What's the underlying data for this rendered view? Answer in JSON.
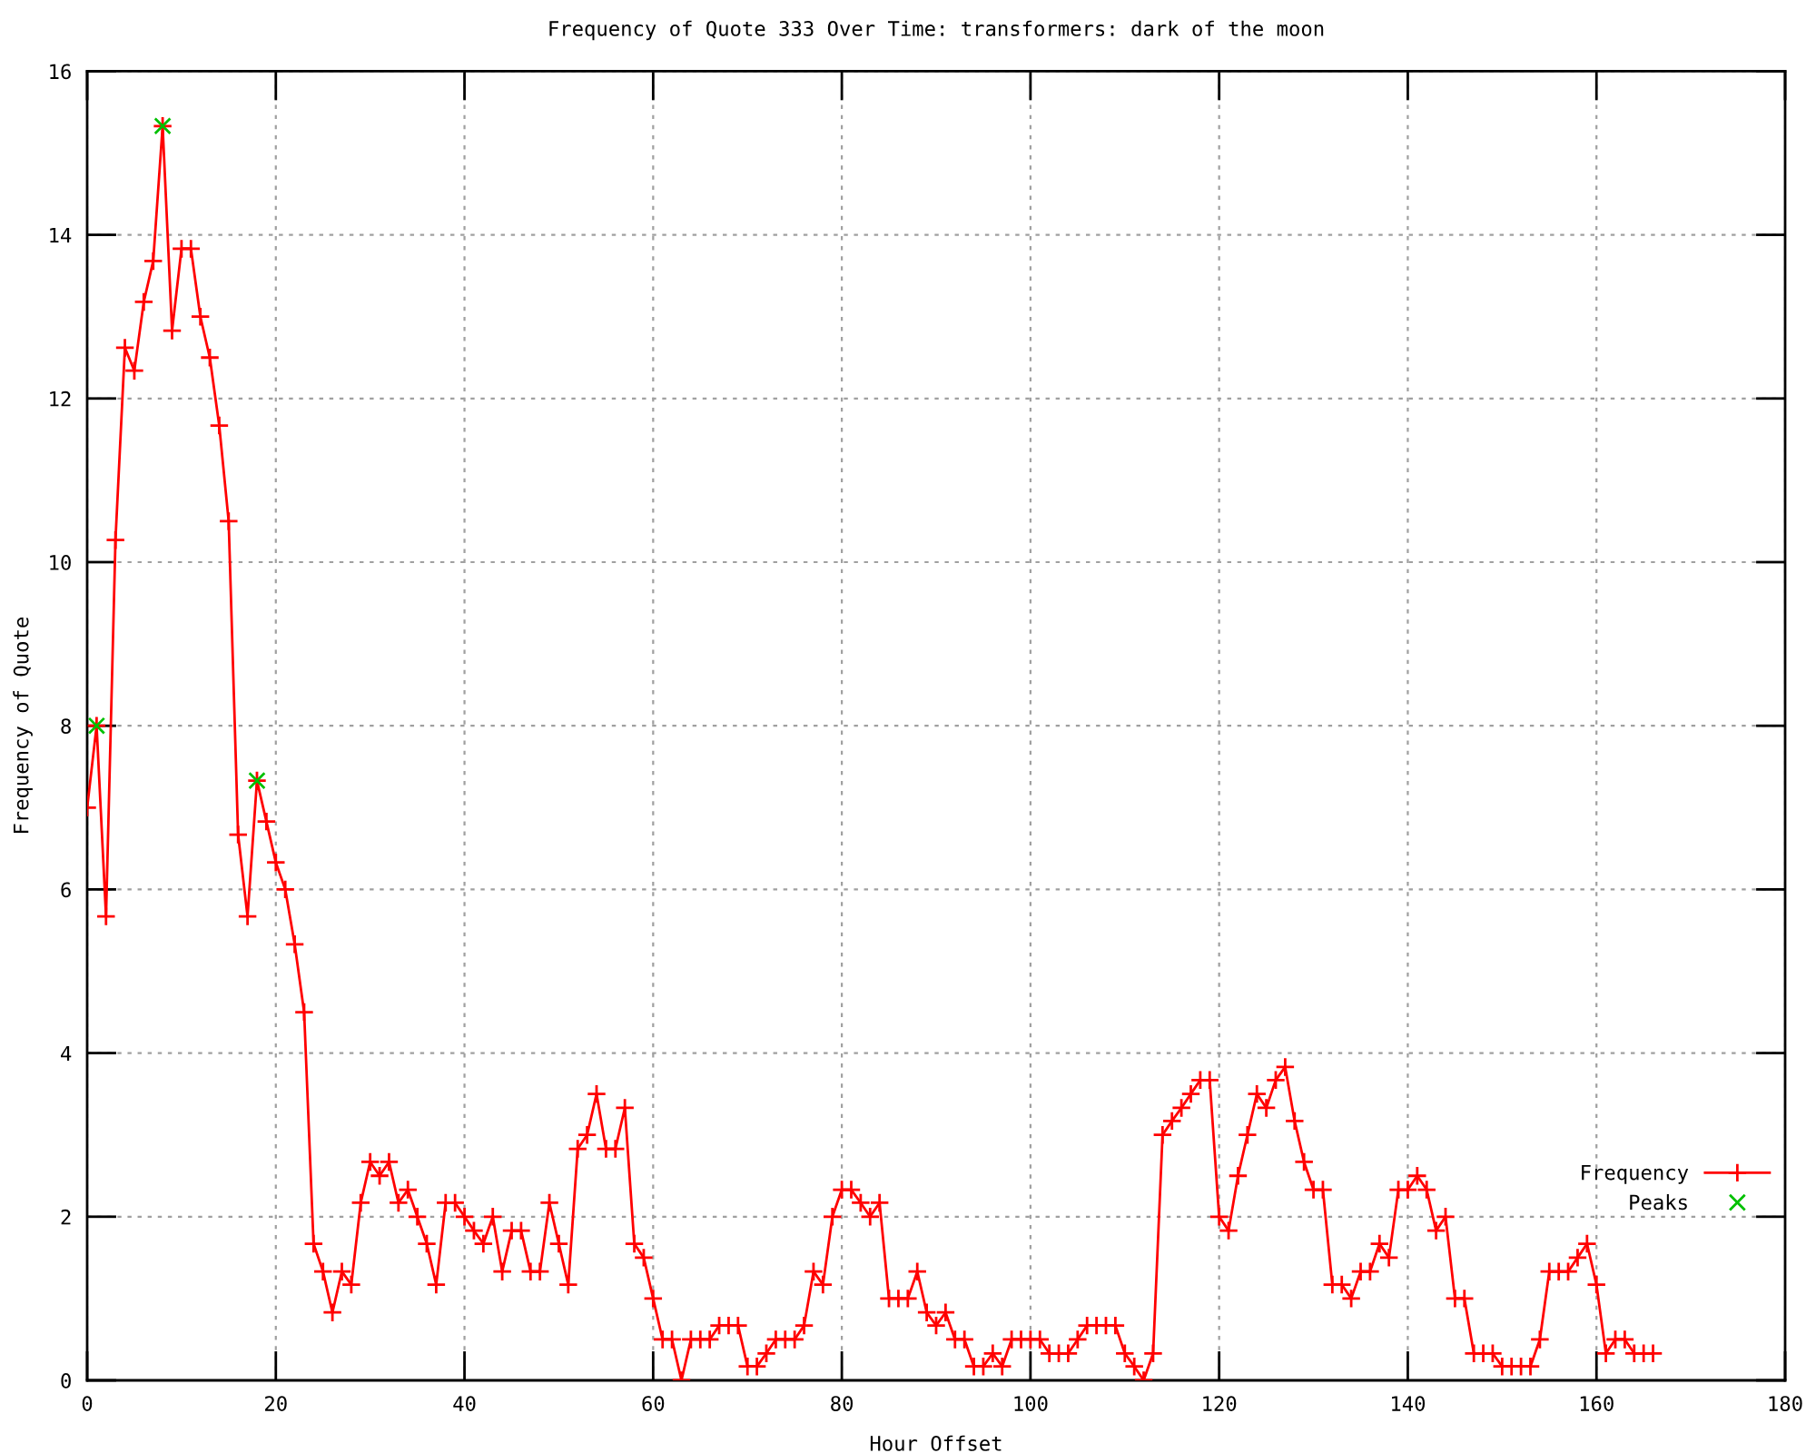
{
  "chart_data": {
    "type": "line",
    "title": "Frequency of Quote 333 Over Time: transformers: dark of the moon",
    "xlabel": "Hour Offset",
    "ylabel": "Frequency of Quote",
    "xlim": [
      0,
      180
    ],
    "ylim": [
      0,
      16
    ],
    "xticks": [
      0,
      20,
      40,
      60,
      80,
      100,
      120,
      140,
      160,
      180
    ],
    "yticks": [
      0,
      2,
      4,
      6,
      8,
      10,
      12,
      14,
      16
    ],
    "grid": true,
    "legend": "bottom right",
    "series": [
      {
        "name": "Frequency",
        "color": "#ff0000",
        "marker": "cross",
        "line_style": "solid",
        "x": [
          0,
          1,
          2,
          3,
          4,
          5,
          6,
          7,
          8,
          9,
          10,
          11,
          12,
          13,
          14,
          15,
          16,
          17,
          18,
          19,
          20,
          21,
          22,
          23,
          24,
          25,
          26,
          27,
          28,
          29,
          30,
          31,
          32,
          33,
          34,
          35,
          36,
          37,
          38,
          39,
          40,
          41,
          42,
          43,
          44,
          45,
          46,
          47,
          48,
          49,
          50,
          51,
          52,
          53,
          54,
          55,
          56,
          57,
          58,
          59,
          60,
          61,
          62,
          63,
          64,
          65,
          66,
          67,
          68,
          69,
          70,
          71,
          72,
          73,
          74,
          75,
          76,
          77,
          78,
          79,
          80,
          81,
          82,
          83,
          84,
          85,
          86,
          87,
          88,
          89,
          90,
          91,
          92,
          93,
          94,
          95,
          96,
          97,
          98,
          99,
          100,
          101,
          102,
          103,
          104,
          105,
          106,
          107,
          108,
          109,
          110,
          111,
          112,
          113,
          114,
          115,
          116,
          117,
          118,
          119,
          120,
          121,
          122,
          123,
          124,
          125,
          126,
          127,
          128,
          129,
          130,
          131,
          132,
          133,
          134,
          135,
          136,
          137,
          138,
          139,
          140,
          141,
          142,
          143,
          144,
          145,
          146,
          147,
          148,
          149,
          150,
          151,
          152,
          153,
          154,
          155,
          156,
          157,
          158,
          159,
          160,
          161,
          162,
          163,
          164,
          165,
          166
        ],
        "values": [
          7.0,
          8.0,
          5.67,
          10.27,
          12.62,
          12.34,
          13.18,
          13.68,
          15.33,
          12.83,
          13.83,
          13.83,
          13.0,
          12.5,
          11.67,
          10.5,
          6.67,
          5.67,
          7.33,
          6.83,
          6.33,
          6.0,
          5.33,
          4.5,
          1.67,
          1.33,
          0.83,
          1.33,
          1.17,
          2.17,
          2.67,
          2.5,
          2.67,
          2.17,
          2.33,
          2.0,
          1.67,
          1.17,
          2.17,
          2.17,
          2.0,
          1.83,
          1.67,
          2.0,
          1.33,
          1.83,
          1.83,
          1.33,
          1.33,
          2.17,
          1.67,
          1.17,
          2.83,
          3.0,
          3.5,
          2.83,
          2.83,
          3.33,
          1.67,
          1.5,
          1.0,
          0.5,
          0.5,
          0.0,
          0.5,
          0.5,
          0.5,
          0.67,
          0.67,
          0.67,
          0.17,
          0.17,
          0.33,
          0.5,
          0.5,
          0.5,
          0.67,
          1.33,
          1.17,
          2.0,
          2.33,
          2.33,
          2.17,
          2.0,
          2.17,
          1.0,
          1.0,
          1.0,
          1.33,
          0.83,
          0.67,
          0.83,
          0.5,
          0.5,
          0.17,
          0.17,
          0.33,
          0.17,
          0.5,
          0.5,
          0.5,
          0.5,
          0.33,
          0.33,
          0.33,
          0.5,
          0.67,
          0.67,
          0.67,
          0.67,
          0.33,
          0.17,
          0.0,
          0.33,
          3.0,
          3.17,
          3.33,
          3.5,
          3.67,
          3.67,
          2.0,
          1.83,
          2.5,
          3.0,
          3.5,
          3.33,
          3.67,
          3.83,
          3.17,
          2.67,
          2.33,
          2.33,
          1.17,
          1.17,
          1.0,
          1.33,
          1.33,
          1.67,
          1.5,
          2.33,
          2.33,
          2.5,
          2.33,
          1.83,
          2.0,
          1.0,
          1.0,
          0.33,
          0.33,
          0.33,
          0.17,
          0.17,
          0.17,
          0.17,
          0.5,
          1.33,
          1.33,
          1.33,
          1.5,
          1.67,
          1.17,
          0.33,
          0.5,
          0.5,
          0.33,
          0.33,
          0.33
        ]
      },
      {
        "name": "Peaks",
        "type": "scatter",
        "color": "#00c000",
        "marker": "cross",
        "x": [
          1,
          8,
          18
        ],
        "values": [
          8.0,
          15.33,
          7.33
        ]
      }
    ]
  }
}
